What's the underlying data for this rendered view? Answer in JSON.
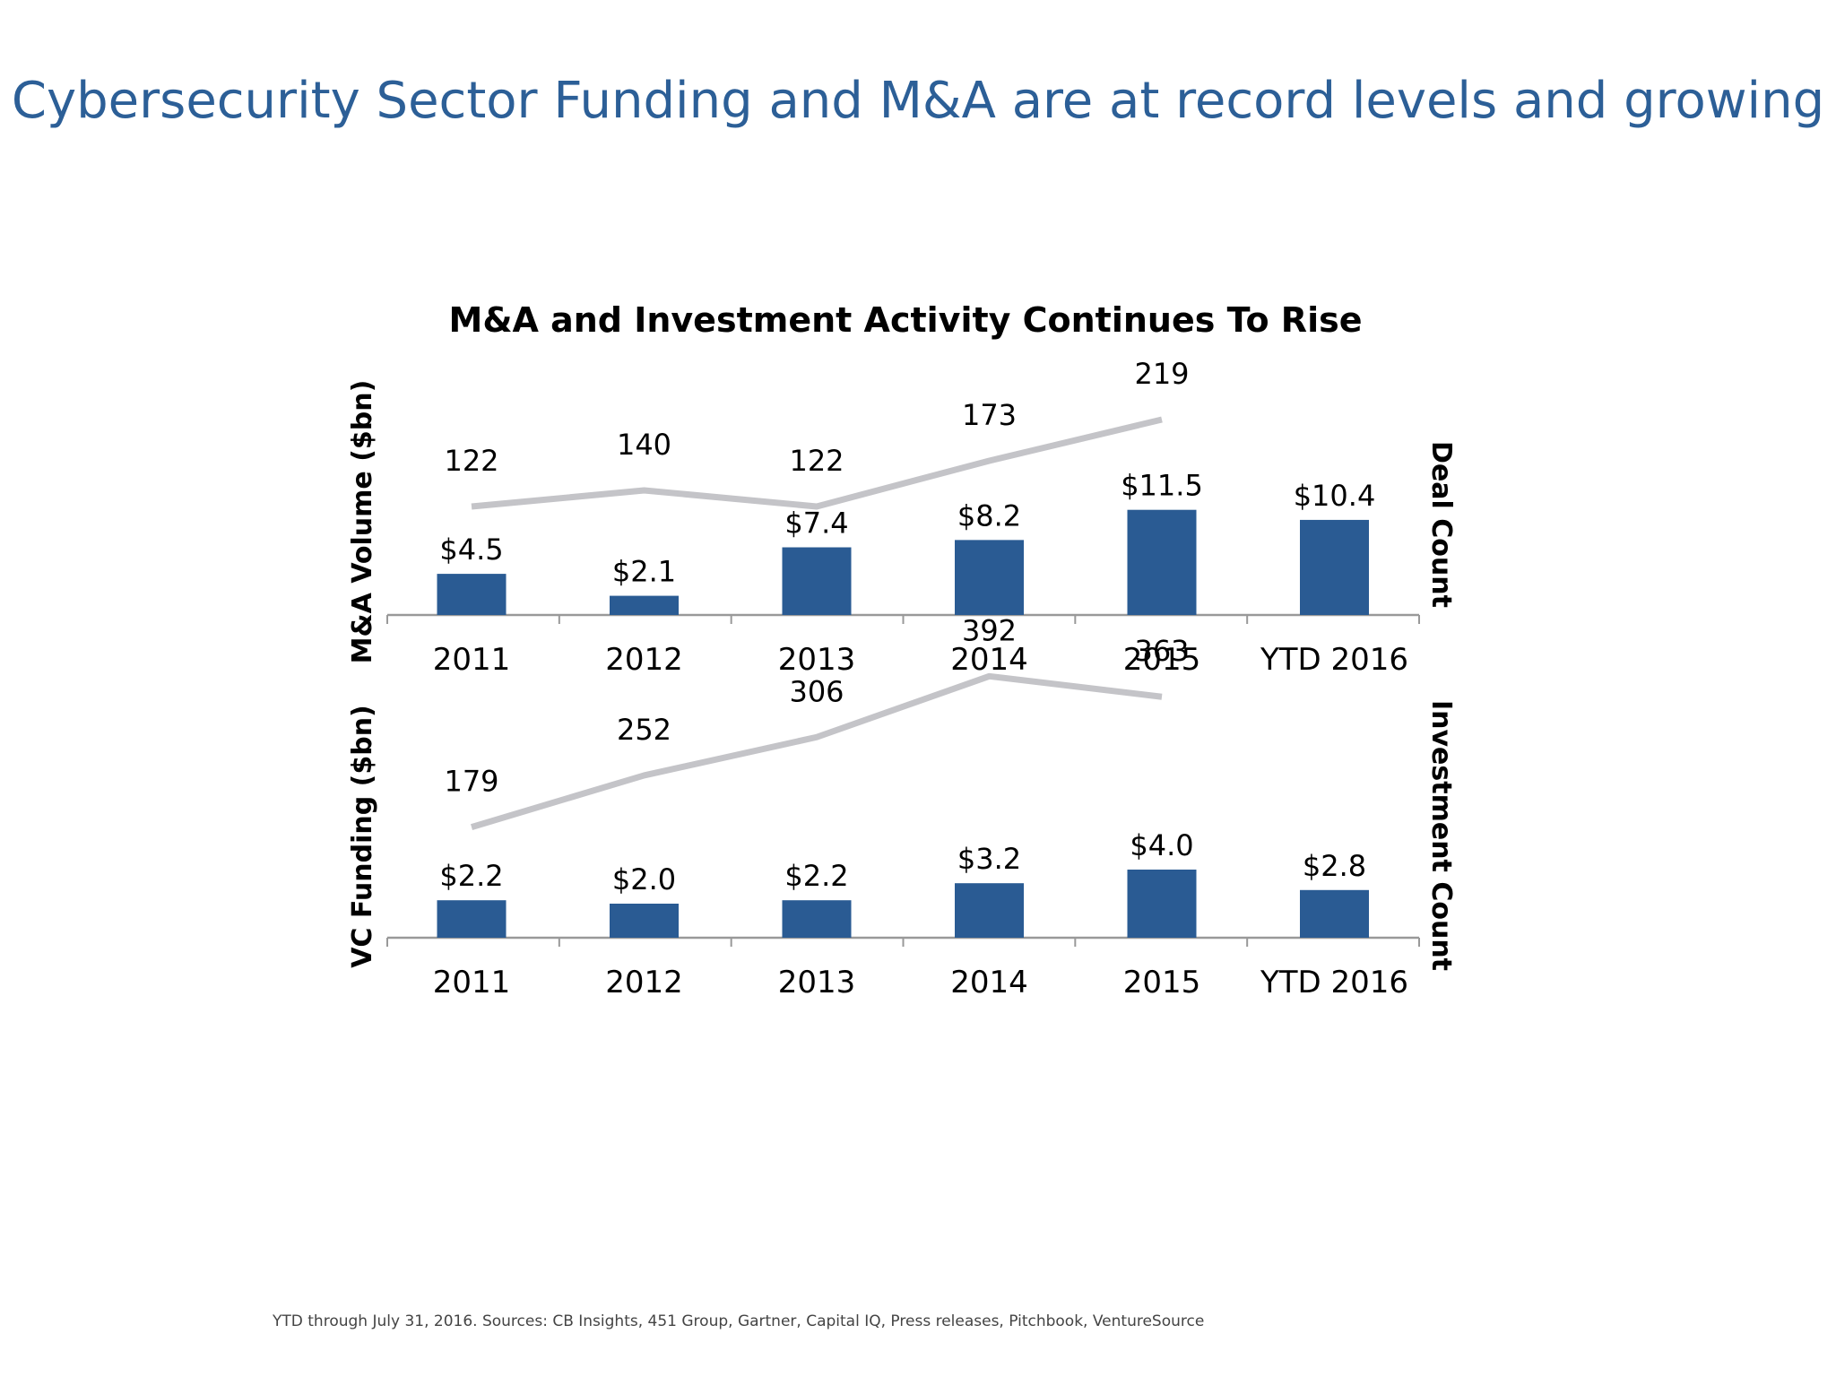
{
  "slide": {
    "title": "Cybersecurity Sector Funding and M&A are at record levels and growing",
    "footnote": "YTD through July 31, 2016.  Sources: CB Insights, 451 Group, Gartner, Capital IQ, Press releases, Pitchbook, VentureSource"
  },
  "colors": {
    "bar": "#2a5b93",
    "line": "#c4c4c8",
    "axis": "#999999",
    "title": "#2c5f97"
  },
  "chart_data": [
    {
      "type": "bar",
      "title": "M&A and Investment Activity Continues To Rise",
      "categories": [
        "2011",
        "2012",
        "2013",
        "2014",
        "2015",
        "YTD 2016"
      ],
      "ylabel": "M&A Volume ($bn)",
      "y2label": "Deal Count",
      "series": [
        {
          "values": [
            4.5,
            2.1,
            7.4,
            8.2,
            11.5,
            10.4
          ],
          "labels": [
            "$4.5",
            "$2.1",
            "$7.4",
            "$8.2",
            "$11.5",
            "$10.4"
          ]
        },
        {
          "type": "line",
          "values": [
            122,
            140,
            122,
            173,
            219,
            null
          ],
          "labels": [
            "122",
            "140",
            "122",
            "173",
            "219",
            ""
          ]
        }
      ]
    },
    {
      "type": "bar",
      "title": "",
      "categories": [
        "2011",
        "2012",
        "2013",
        "2014",
        "2015",
        "YTD 2016"
      ],
      "ylabel": "VC Funding ($bn)",
      "y2label": "Investment Count",
      "series": [
        {
          "values": [
            2.2,
            2.0,
            2.2,
            3.2,
            4.0,
            2.8
          ],
          "labels": [
            "$2.2",
            "$2.0",
            "$2.2",
            "$3.2",
            "$4.0",
            "$2.8"
          ]
        },
        {
          "type": "line",
          "values": [
            179,
            252,
            306,
            392,
            363,
            null
          ],
          "labels": [
            "179",
            "252",
            "306",
            "392",
            "363",
            ""
          ]
        }
      ]
    }
  ]
}
